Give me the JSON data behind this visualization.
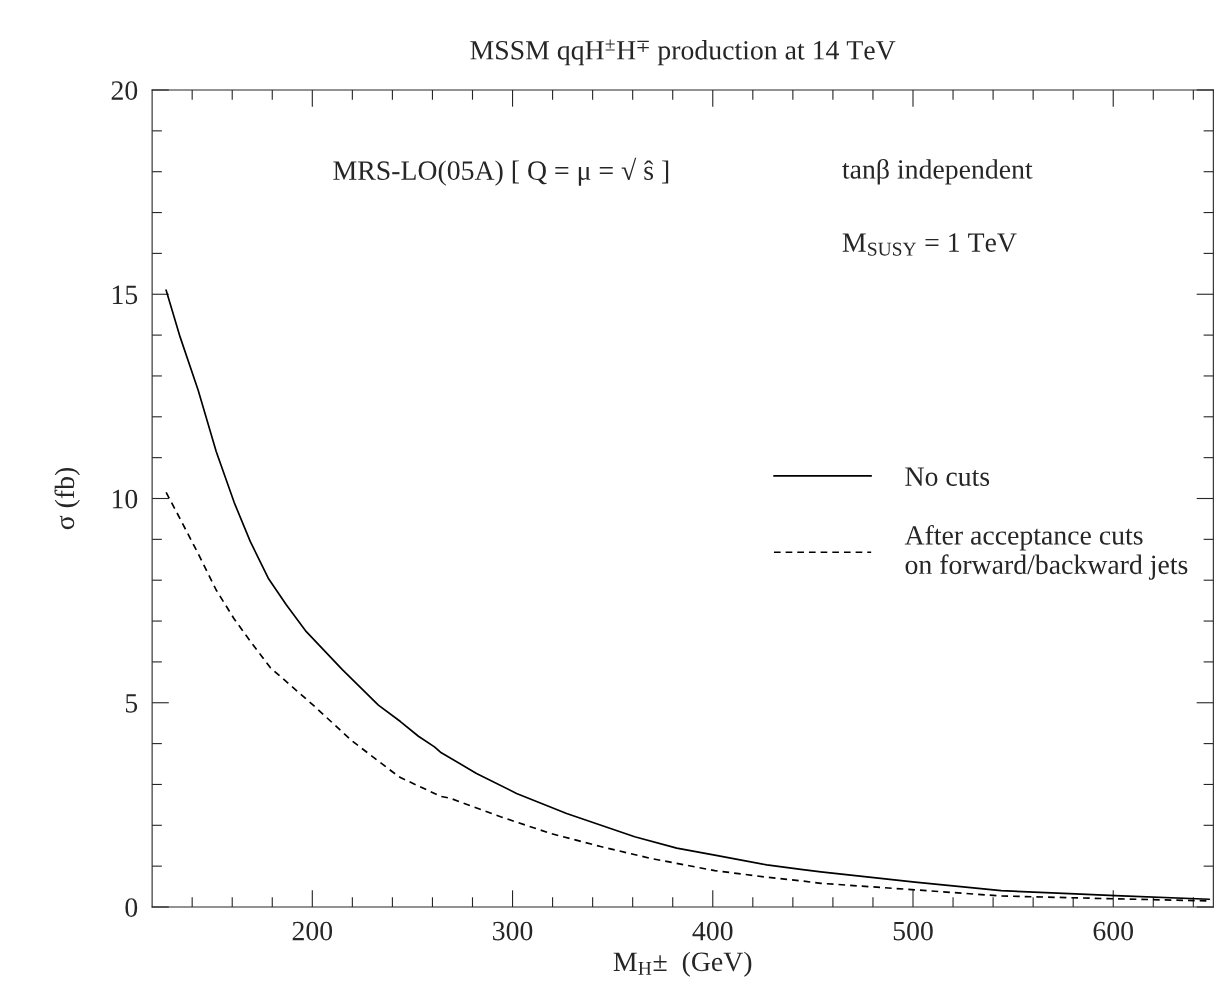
{
  "chart_data": {
    "type": "line",
    "title": "MSSM qqH$^{±}$H$^{∓}$ production at 14 TeV",
    "xlabel": "M$_{H}$±  (GeV)",
    "ylabel": "σ (fb)",
    "annotations": [
      "MRS-LO(05A) [ Q = μ = √ ŝ ]",
      "tanβ independent",
      "M$_{SUSY}$ = 1 TeV"
    ],
    "xlim": [
      120,
      650
    ],
    "ylim": [
      0,
      20
    ],
    "xticks": [
      {
        "value": 140,
        "label": null
      },
      {
        "value": 160,
        "label": null
      },
      {
        "value": 180,
        "label": null
      },
      200,
      {
        "value": 220,
        "label": null
      },
      {
        "value": 240,
        "label": null
      },
      {
        "value": 260,
        "label": null
      },
      {
        "value": 280,
        "label": null
      },
      300,
      {
        "value": 320,
        "label": null
      },
      {
        "value": 340,
        "label": null
      },
      {
        "value": 360,
        "label": null
      },
      {
        "value": 380,
        "label": null
      },
      400,
      {
        "value": 420,
        "label": null
      },
      {
        "value": 440,
        "label": null
      },
      {
        "value": 460,
        "label": null
      },
      {
        "value": 480,
        "label": null
      },
      500,
      {
        "value": 520,
        "label": null
      },
      {
        "value": 540,
        "label": null
      },
      {
        "value": 560,
        "label": null
      },
      {
        "value": 580,
        "label": null
      },
      600,
      {
        "value": 620,
        "label": null
      },
      {
        "value": 640,
        "label": null
      }
    ],
    "yticks": [
      0,
      {
        "value": 1,
        "label": null
      },
      {
        "value": 2,
        "label": null
      },
      {
        "value": 3,
        "label": null
      },
      {
        "value": 4,
        "label": null
      },
      5,
      {
        "value": 6,
        "label": null
      },
      {
        "value": 7,
        "label": null
      },
      {
        "value": 8,
        "label": null
      },
      {
        "value": 9,
        "label": null
      },
      10,
      {
        "value": 11,
        "label": null
      },
      {
        "value": 12,
        "label": null
      },
      {
        "value": 13,
        "label": null
      },
      {
        "value": 14,
        "label": null
      },
      15,
      {
        "value": 16,
        "label": null
      },
      {
        "value": 17,
        "label": null
      },
      {
        "value": 18,
        "label": null
      },
      {
        "value": 19,
        "label": null
      },
      20
    ],
    "grid": false,
    "legend": "center right",
    "series": [
      {
        "name": "No cuts",
        "color": "#000000",
        "line_style": "solid",
        "x": [
          127,
          134,
          143,
          152,
          161,
          169,
          178,
          187,
          197,
          215,
          233,
          244,
          253,
          261,
          264,
          282,
          302,
          327,
          361,
          382,
          401,
          427,
          444,
          454,
          501,
          544,
          581,
          601,
          648
        ],
        "values": [
          15.1,
          13.95,
          12.65,
          11.15,
          9.9,
          8.95,
          8.05,
          7.4,
          6.74,
          5.81,
          4.94,
          4.54,
          4.18,
          3.92,
          3.79,
          3.27,
          2.78,
          2.29,
          1.72,
          1.44,
          1.27,
          1.03,
          0.92,
          0.86,
          0.61,
          0.4,
          0.32,
          0.28,
          0.19
        ]
      },
      {
        "name": "After acceptance cuts\non forward/backward jets",
        "color": "#000000",
        "line_style": "dashed",
        "x": [
          127,
          134,
          143,
          152,
          161,
          169,
          179,
          200,
          220,
          240,
          244,
          264,
          269,
          294,
          319,
          344,
          369,
          401,
          427,
          444,
          454,
          501,
          544,
          601,
          648
        ],
        "values": [
          10.15,
          9.5,
          8.65,
          7.76,
          7.05,
          6.51,
          5.86,
          4.96,
          4.06,
          3.31,
          3.17,
          2.71,
          2.66,
          2.21,
          1.8,
          1.48,
          1.19,
          0.89,
          0.73,
          0.64,
          0.58,
          0.42,
          0.27,
          0.2,
          0.15
        ]
      }
    ]
  }
}
